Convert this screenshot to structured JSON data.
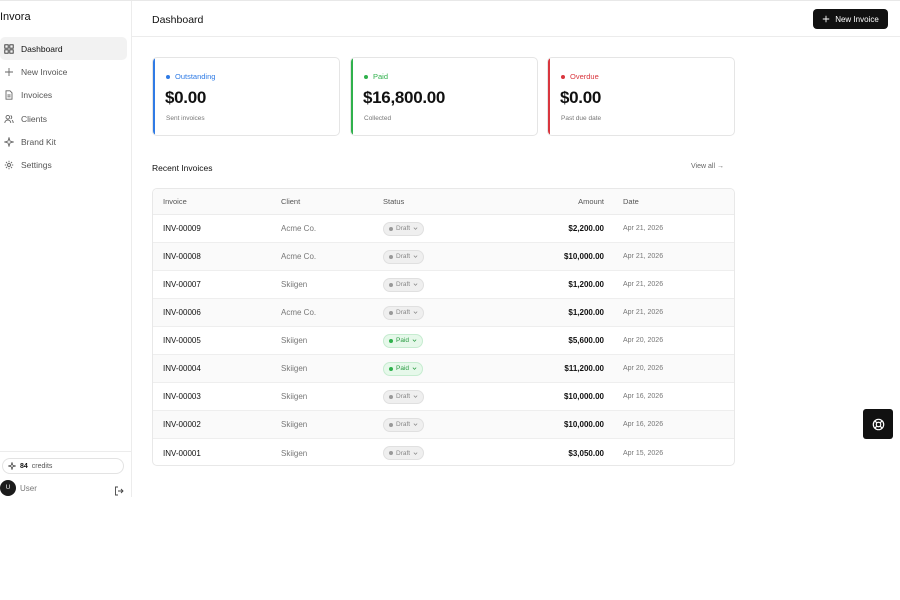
{
  "app": {
    "name": "Invora"
  },
  "sidebar": {
    "items": [
      {
        "label": "Dashboard",
        "icon": "grid-icon"
      },
      {
        "label": "New Invoice",
        "icon": "plus-icon"
      },
      {
        "label": "Invoices",
        "icon": "file-icon"
      },
      {
        "label": "Clients",
        "icon": "users-icon"
      },
      {
        "label": "Brand Kit",
        "icon": "sparkle-icon"
      },
      {
        "label": "Settings",
        "icon": "gear-icon"
      }
    ],
    "credits": {
      "count": "84",
      "label": "credits"
    },
    "user": {
      "initial": "U",
      "name": "User"
    }
  },
  "header": {
    "title": "Dashboard",
    "new_invoice_label": "New Invoice"
  },
  "cards": [
    {
      "label": "Outstanding",
      "value": "$0.00",
      "sub": "Sent invoices",
      "color": "#2f7be5"
    },
    {
      "label": "Paid",
      "value": "$16,800.00",
      "sub": "Collected",
      "color": "#2fb14c"
    },
    {
      "label": "Overdue",
      "value": "$0.00",
      "sub": "Past due date",
      "color": "#d9363e"
    }
  ],
  "recent": {
    "title": "Recent Invoices",
    "view_all": "View all →",
    "columns": {
      "invoice": "Invoice",
      "client": "Client",
      "status": "Status",
      "amount": "Amount",
      "date": "Date"
    },
    "rows": [
      {
        "invoice": "INV-00009",
        "client": "Acme Co.",
        "status": "Draft",
        "amount": "$2,200.00",
        "date": "Apr 21, 2026"
      },
      {
        "invoice": "INV-00008",
        "client": "Acme Co.",
        "status": "Draft",
        "amount": "$10,000.00",
        "date": "Apr 21, 2026"
      },
      {
        "invoice": "INV-00007",
        "client": "Skiigen",
        "status": "Draft",
        "amount": "$1,200.00",
        "date": "Apr 21, 2026"
      },
      {
        "invoice": "INV-00006",
        "client": "Acme Co.",
        "status": "Draft",
        "amount": "$1,200.00",
        "date": "Apr 21, 2026"
      },
      {
        "invoice": "INV-00005",
        "client": "Skiigen",
        "status": "Paid",
        "amount": "$5,600.00",
        "date": "Apr 20, 2026"
      },
      {
        "invoice": "INV-00004",
        "client": "Skiigen",
        "status": "Paid",
        "amount": "$11,200.00",
        "date": "Apr 20, 2026"
      },
      {
        "invoice": "INV-00003",
        "client": "Skiigen",
        "status": "Draft",
        "amount": "$10,000.00",
        "date": "Apr 16, 2026"
      },
      {
        "invoice": "INV-00002",
        "client": "Skiigen",
        "status": "Draft",
        "amount": "$10,000.00",
        "date": "Apr 16, 2026"
      },
      {
        "invoice": "INV-00001",
        "client": "Skiigen",
        "status": "Draft",
        "amount": "$3,050.00",
        "date": "Apr 15, 2026"
      }
    ]
  },
  "help": {
    "icon": "lifebuoy-icon"
  }
}
